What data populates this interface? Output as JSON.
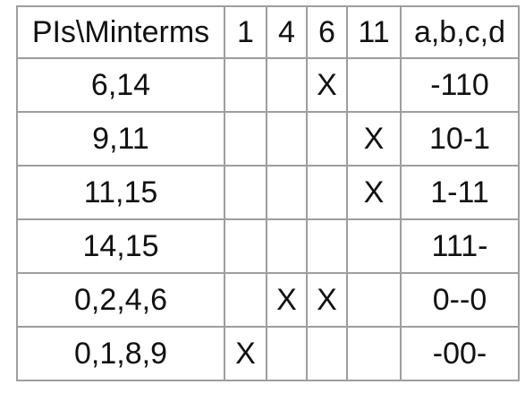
{
  "table": {
    "headers": [
      "PIs\\Minterms",
      "1",
      "4",
      "6",
      "11",
      "a,b,c,d"
    ],
    "rows": [
      {
        "pi": "6,14",
        "m1": "",
        "m4": "",
        "m6": "X",
        "m11": "",
        "abcd": "-110"
      },
      {
        "pi": "9,11",
        "m1": "",
        "m4": "",
        "m6": "",
        "m11": "X",
        "abcd": "10-1"
      },
      {
        "pi": "11,15",
        "m1": "",
        "m4": "",
        "m6": "",
        "m11": "X",
        "abcd": "1-11"
      },
      {
        "pi": "14,15",
        "m1": "",
        "m4": "",
        "m6": "",
        "m11": "",
        "abcd": "111-"
      },
      {
        "pi": "0,2,4,6",
        "m1": "",
        "m4": "X",
        "m6": "X",
        "m11": "",
        "abcd": "0--0"
      },
      {
        "pi": "0,1,8,9",
        "m1": "X",
        "m4": "",
        "m6": "",
        "m11": "",
        "abcd": "-00-"
      }
    ]
  },
  "colors": {
    "border": "#9e9e9e",
    "text": "#111111",
    "background": "#ffffff"
  }
}
